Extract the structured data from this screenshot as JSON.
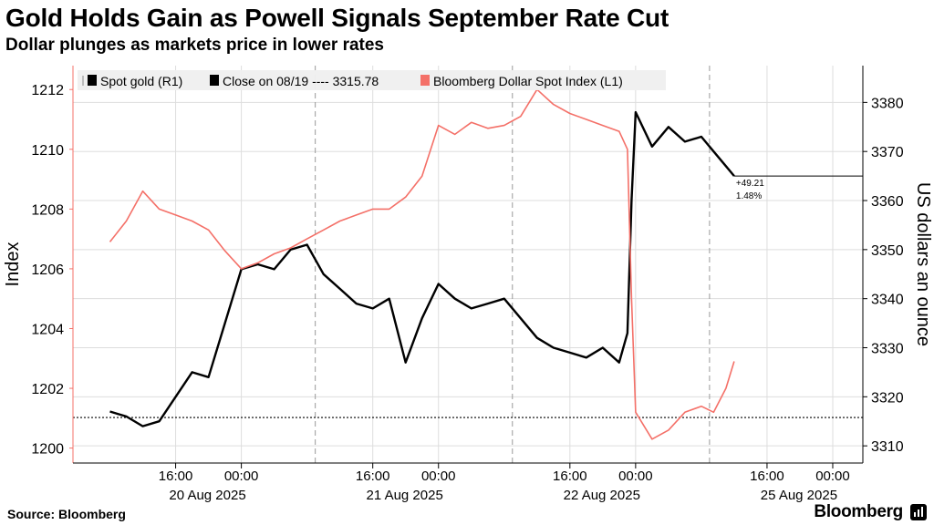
{
  "title": "Gold Holds Gain as Powell Signals September Rate Cut",
  "subtitle": "Dollar plunges as markets price in lower rates",
  "source": "Source: Bloomberg",
  "brand": "Bloomberg",
  "chart_data": {
    "type": "line",
    "legend_position": "top-left",
    "grid": true,
    "x_ticks": [
      {
        "time": "16:00",
        "date": "20 Aug 2025"
      },
      {
        "time": "00:00",
        "date": ""
      },
      {
        "time": "16:00",
        "date": "21 Aug 2025"
      },
      {
        "time": "00:00",
        "date": ""
      },
      {
        "time": "16:00",
        "date": "22 Aug 2025"
      },
      {
        "time": "00:00",
        "date": ""
      },
      {
        "time": "16:00",
        "date": "25 Aug 2025"
      },
      {
        "time": "00:00",
        "date": ""
      }
    ],
    "y_left": {
      "label": "Index",
      "range": [
        1199.5,
        1212.8
      ],
      "ticks": [
        "1200",
        "1202",
        "1204",
        "1206",
        "1208",
        "1210",
        "1212"
      ]
    },
    "y_right": {
      "label": "US dollars an ounce",
      "range": [
        3306.5,
        3387.5
      ],
      "ticks": [
        "3310",
        "3320",
        "3330",
        "3340",
        "3350",
        "3360",
        "3370",
        "3380"
      ]
    },
    "legend": [
      {
        "name": "Spot gold (R1)",
        "color": "#000000"
      },
      {
        "name": "Close on 08/19 ---- 3315.78",
        "color": "#000000"
      },
      {
        "name": "Bloomberg Dollar Spot Index (L1)",
        "color": "#f47068"
      }
    ],
    "reference_line": {
      "value": 3315.78,
      "style": "dotted"
    },
    "annotation": {
      "change": "+49.21",
      "percent": "1.48%",
      "level": 3365.0
    },
    "colors": {
      "gold": "#000000",
      "dollar": "#f47068",
      "grid": "#dddddd"
    },
    "series": [
      {
        "name": "Spot gold (R1)",
        "axis": "right",
        "points": [
          [
            "08-20 08:00",
            3317
          ],
          [
            "08-20 10:00",
            3316
          ],
          [
            "08-20 12:00",
            3314
          ],
          [
            "08-20 14:00",
            3315
          ],
          [
            "08-20 16:00",
            3320
          ],
          [
            "08-20 18:00",
            3325
          ],
          [
            "08-20 20:00",
            3324
          ],
          [
            "08-20 22:00",
            3335
          ],
          [
            "08-21 00:00",
            3346
          ],
          [
            "08-21 02:00",
            3347
          ],
          [
            "08-21 04:00",
            3346
          ],
          [
            "08-21 06:00",
            3350
          ],
          [
            "08-21 08:00",
            3351
          ],
          [
            "08-21 10:00",
            3345
          ],
          [
            "08-21 12:00",
            3342
          ],
          [
            "08-21 14:00",
            3339
          ],
          [
            "08-21 16:00",
            3338
          ],
          [
            "08-21 18:00",
            3340
          ],
          [
            "08-21 20:00",
            3327
          ],
          [
            "08-21 22:00",
            3336
          ],
          [
            "08-22 00:00",
            3343
          ],
          [
            "08-22 02:00",
            3340
          ],
          [
            "08-22 04:00",
            3338
          ],
          [
            "08-22 06:00",
            3339
          ],
          [
            "08-22 08:00",
            3340
          ],
          [
            "08-22 10:00",
            3336
          ],
          [
            "08-22 12:00",
            3332
          ],
          [
            "08-22 14:00",
            3330
          ],
          [
            "08-22 16:00",
            3329
          ],
          [
            "08-22 18:00",
            3328
          ],
          [
            "08-22 20:00",
            3330
          ],
          [
            "08-22 22:00",
            3327
          ],
          [
            "08-22 23:00",
            3333
          ],
          [
            "08-22 23:30",
            3360
          ],
          [
            "08-23 00:00",
            3378
          ],
          [
            "08-23 02:00",
            3371
          ],
          [
            "08-23 04:00",
            3375
          ],
          [
            "08-23 06:00",
            3372
          ],
          [
            "08-23 08:00",
            3373
          ],
          [
            "08-23 09:30",
            3370
          ],
          [
            "08-23 11:00",
            3367
          ],
          [
            "08-23 12:00",
            3365
          ]
        ]
      },
      {
        "name": "Bloomberg Dollar Spot Index (L1)",
        "axis": "left",
        "points": [
          [
            "08-20 08:00",
            1206.9
          ],
          [
            "08-20 10:00",
            1207.6
          ],
          [
            "08-20 12:00",
            1208.6
          ],
          [
            "08-20 14:00",
            1208.0
          ],
          [
            "08-20 16:00",
            1207.8
          ],
          [
            "08-20 18:00",
            1207.6
          ],
          [
            "08-20 20:00",
            1207.3
          ],
          [
            "08-20 22:00",
            1206.6
          ],
          [
            "08-21 00:00",
            1206.0
          ],
          [
            "08-21 02:00",
            1206.2
          ],
          [
            "08-21 04:00",
            1206.5
          ],
          [
            "08-21 06:00",
            1206.7
          ],
          [
            "08-21 08:00",
            1207.0
          ],
          [
            "08-21 10:00",
            1207.3
          ],
          [
            "08-21 12:00",
            1207.6
          ],
          [
            "08-21 14:00",
            1207.8
          ],
          [
            "08-21 16:00",
            1208.0
          ],
          [
            "08-21 18:00",
            1208.0
          ],
          [
            "08-21 20:00",
            1208.4
          ],
          [
            "08-21 22:00",
            1209.1
          ],
          [
            "08-22 00:00",
            1210.8
          ],
          [
            "08-22 02:00",
            1210.5
          ],
          [
            "08-22 04:00",
            1210.9
          ],
          [
            "08-22 06:00",
            1210.7
          ],
          [
            "08-22 08:00",
            1210.8
          ],
          [
            "08-22 10:00",
            1211.1
          ],
          [
            "08-22 12:00",
            1212.0
          ],
          [
            "08-22 14:00",
            1211.5
          ],
          [
            "08-22 16:00",
            1211.2
          ],
          [
            "08-22 18:00",
            1211.0
          ],
          [
            "08-22 20:00",
            1210.8
          ],
          [
            "08-22 22:00",
            1210.6
          ],
          [
            "08-22 23:00",
            1210.0
          ],
          [
            "08-22 23:30",
            1205.0
          ],
          [
            "08-23 00:00",
            1201.2
          ],
          [
            "08-23 02:00",
            1200.3
          ],
          [
            "08-23 04:00",
            1200.6
          ],
          [
            "08-23 06:00",
            1201.2
          ],
          [
            "08-23 08:00",
            1201.4
          ],
          [
            "08-23 09:30",
            1201.2
          ],
          [
            "08-23 11:00",
            1202.0
          ],
          [
            "08-23 12:00",
            1202.9
          ]
        ]
      }
    ]
  }
}
